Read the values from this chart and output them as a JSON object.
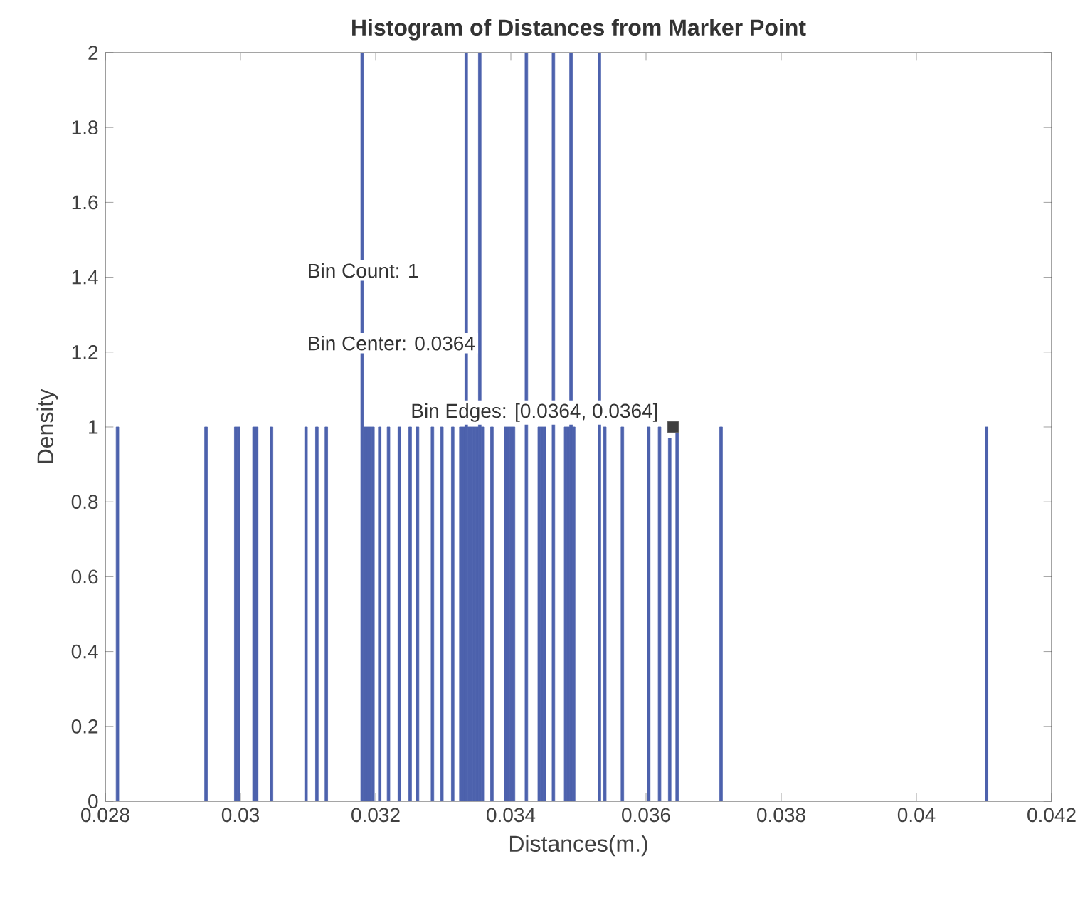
{
  "chart_data": {
    "type": "histogram",
    "title": "Histogram of Distances from Marker Point",
    "xlabel": "Distances(m.)",
    "ylabel": "Density",
    "bins": [
      0.02816,
      0.0282,
      0.02947,
      0.02951,
      0.02991,
      0.02995,
      0.02999,
      0.03018,
      0.03022,
      0.03026,
      0.03044,
      0.03048,
      0.03095,
      0.03099,
      0.03111,
      0.03115,
      0.03125,
      0.03129,
      0.03178,
      0.03182,
      0.03186,
      0.0319,
      0.03194,
      0.03198,
      0.03204,
      0.03208,
      0.03217,
      0.03221,
      0.03233,
      0.03237,
      0.03249,
      0.03253,
      0.0326,
      0.03264,
      0.03282,
      0.03286,
      0.03296,
      0.033,
      0.03312,
      0.03316,
      0.03324,
      0.03328,
      0.03332,
      0.03336,
      0.0334,
      0.03344,
      0.03348,
      0.03352,
      0.03356,
      0.0336,
      0.0337,
      0.03374,
      0.0339,
      0.03394,
      0.03398,
      0.03402,
      0.03406,
      0.03421,
      0.03425,
      0.0344,
      0.03444,
      0.03448,
      0.03452,
      0.03461,
      0.03465,
      0.03479,
      0.03483,
      0.03487,
      0.03491,
      0.03495,
      0.03529,
      0.03533,
      0.03537,
      0.03541,
      0.03563,
      0.03567,
      0.03602,
      0.03606,
      0.03618,
      0.03622,
      0.03633,
      0.03637,
      0.03644,
      0.03648,
      0.03709,
      0.03713,
      0.04102,
      0.04106
    ],
    "values": [
      1,
      0,
      1,
      0,
      1,
      1,
      0,
      1,
      1,
      0,
      1,
      0,
      1,
      0,
      1,
      0,
      1,
      0,
      2,
      1,
      1,
      1,
      1,
      0,
      1,
      0,
      1,
      0,
      1,
      0,
      1,
      0,
      1,
      0,
      1,
      0,
      1,
      0,
      1,
      0,
      1,
      1,
      2,
      1,
      1,
      1,
      1,
      2,
      1,
      0,
      1,
      0,
      1,
      1,
      1,
      1,
      0,
      2,
      0,
      1,
      1,
      1,
      0,
      2,
      0,
      1,
      1,
      2,
      1,
      0,
      2,
      0,
      1,
      0,
      1,
      0,
      1,
      0,
      1,
      0,
      0.97,
      0,
      1,
      0,
      1,
      0,
      1
    ],
    "color": "#4d62ad",
    "xlim": [
      0.028,
      0.042
    ],
    "ylim": [
      0,
      2
    ],
    "xticks": [
      0.028,
      0.03,
      0.032,
      0.034,
      0.036,
      0.038,
      0.04,
      0.042
    ],
    "yticks": [
      0,
      0.2,
      0.4,
      0.6,
      0.8,
      1,
      1.2,
      1.4,
      1.6,
      1.8,
      2
    ],
    "grid": false,
    "annotations": [
      "Bin Count: 1",
      "Bin Center: 0.0364",
      {
        "text": "Bin Edges: [0.0364, 0.0364]",
        "x": 0.0364,
        "y": 1
      }
    ]
  }
}
